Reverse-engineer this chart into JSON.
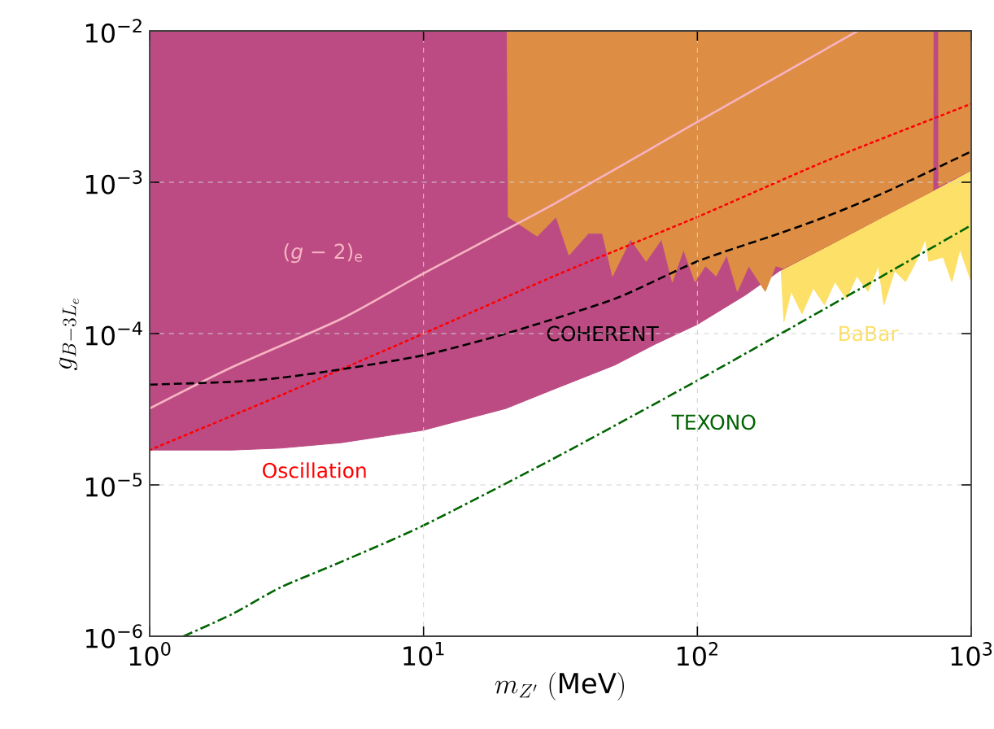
{
  "chart_data": {
    "type": "area",
    "xlabel": "m_{Z'}\\ \\mathrm{(MeV)}",
    "ylabel": "g_{B-3L_e}",
    "log": "xy",
    "grid": true,
    "xlim": [
      1,
      1000
    ],
    "ylim": [
      1e-06,
      0.01
    ],
    "xticks": [
      {
        "value": 1,
        "label": "10$^{0}$"
      },
      {
        "value": 10,
        "label": "10$^{1}$"
      },
      {
        "value": 100,
        "label": "10$^{2}$"
      },
      {
        "value": 1000,
        "label": "10$^{3}$"
      }
    ],
    "yticks": [
      {
        "value": 1e-06,
        "label": "10$^{−6}$"
      },
      {
        "value": 1e-05,
        "label": "10$^{−5}$"
      },
      {
        "value": 0.0001,
        "label": "10$^{−4}$"
      },
      {
        "value": 0.001,
        "label": "10$^{−3}$"
      },
      {
        "value": 0.01,
        "label": "10$^{−2}$"
      }
    ],
    "series": [
      {
        "name": "BaBar",
        "color": "#fde068",
        "x": [
          202,
          202,
          207,
          220,
          241,
          265,
          291,
          318,
          350,
          382,
          420,
          458,
          480,
          525,
          575,
          630,
          680,
          700,
          790,
          850,
          910,
          1000,
          1000
        ],
        "values": [
          0.01,
          0.00027,
          0.00012,
          0.00019,
          0.000135,
          0.0002,
          0.000155,
          0.00022,
          0.00017,
          0.00024,
          0.00019,
          0.00028,
          0.000155,
          0.00026,
          0.00022,
          0.0003,
          0.00042,
          0.0003,
          0.00032,
          0.00022,
          0.00036,
          0.00022,
          0.01
        ]
      },
      {
        "color": "#bc4b83",
        "x": [
          1,
          1,
          2,
          3,
          5,
          10,
          20,
          30,
          50,
          70,
          100,
          150,
          200,
          300,
          500,
          700,
          1000,
          1000
        ],
        "values": [
          0.01,
          1.7e-05,
          1.7e-05,
          1.75e-05,
          1.9e-05,
          2.3e-05,
          3.2e-05,
          4.3e-05,
          6.2e-05,
          8.5e-05,
          0.000115,
          0.00018,
          0.00026,
          0.00038,
          0.00062,
          0.00085,
          0.0012,
          0.01
        ]
      },
      {
        "color": "#dd8e44",
        "x": [
          20.2,
          20.4,
          26,
          30.5,
          34,
          40,
          45,
          49,
          57,
          65,
          74,
          81,
          89,
          98,
          107,
          117,
          128,
          140,
          154,
          177,
          193,
          206,
          300,
          500,
          700,
          725,
          726,
          760,
          761,
          1000,
          1000
        ],
        "values": [
          0.01,
          0.00059,
          0.00044,
          0.00059,
          0.00033,
          0.00046,
          0.00046,
          0.00024,
          0.00042,
          0.0003,
          0.00042,
          0.00022,
          0.00036,
          0.00022,
          0.00028,
          0.00024,
          0.00033,
          0.00019,
          0.00028,
          0.00019,
          0.00028,
          0.00027,
          0.00038,
          0.00062,
          0.00085,
          0.00088,
          0.01,
          0.01,
          0.00094,
          0.0012,
          0.01
        ]
      },
      {
        "name": "(*g* − 2)$_{e}$",
        "type": "line",
        "line_style": "solid",
        "color": "#f7b3c2",
        "x": [
          1,
          2,
          5,
          10,
          30,
          100,
          385
        ],
        "values": [
          3.2e-05,
          6e-05,
          0.000125,
          0.00025,
          0.00072,
          0.0025,
          0.01
        ]
      },
      {
        "name": "Oscillation",
        "type": "line",
        "line_style": "dotted",
        "color": "#ff0000",
        "x": [
          1,
          3,
          10,
          30,
          100,
          300,
          1000
        ],
        "values": [
          1.7e-05,
          3.9e-05,
          0.0001,
          0.00024,
          0.00059,
          0.0014,
          0.0033
        ]
      },
      {
        "name": "COHERENT",
        "type": "line",
        "line_style": "dashed",
        "color": "#000000",
        "x": [
          1,
          2,
          3,
          5,
          10,
          20,
          50,
          100,
          200,
          300,
          500,
          1000
        ],
        "values": [
          4.6e-05,
          4.8e-05,
          5.1e-05,
          5.8e-05,
          7.2e-05,
          0.0001,
          0.00017,
          0.0003,
          0.00046,
          0.0006,
          0.00088,
          0.0016
        ]
      },
      {
        "name": "TEXONO",
        "type": "line",
        "line_style": "dashdot",
        "color": "#006400",
        "x": [
          1.33,
          2,
          3,
          5,
          10,
          30,
          100,
          300,
          1000
        ],
        "values": [
          1e-06,
          1.4e-06,
          2.1e-06,
          3.1e-06,
          5.4e-06,
          1.5e-05,
          4.9e-05,
          0.00015,
          0.00052
        ]
      }
    ]
  }
}
